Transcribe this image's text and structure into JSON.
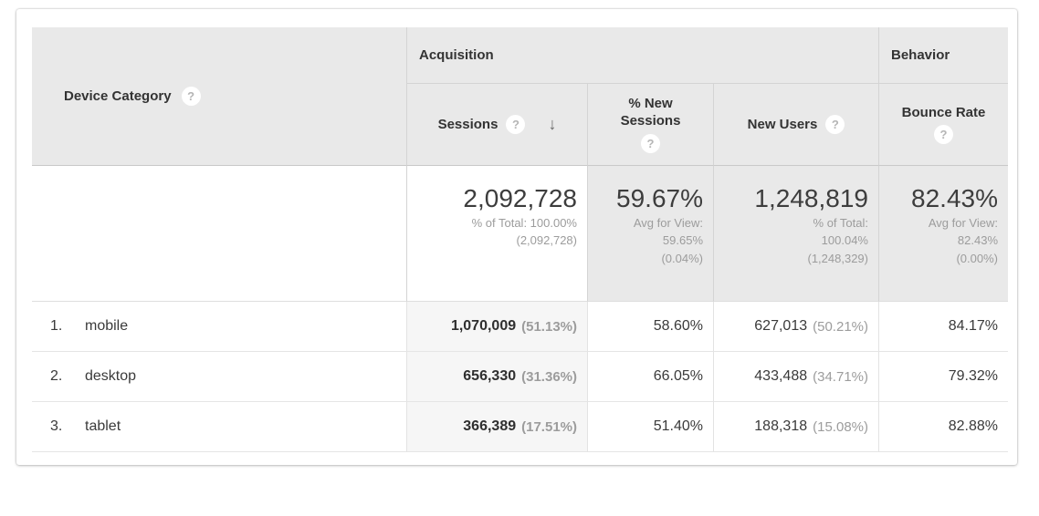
{
  "icons": {
    "help": "?",
    "sort_descending": "↓"
  },
  "colors": {
    "header_bg": "#e9e9e9",
    "sorted_col_bg": "#f6f6f6",
    "header_border": "#c9c9c9",
    "row_border": "#e5e5e5",
    "text_primary": "#3a3a3a",
    "text_secondary": "#9c9c9c"
  },
  "table": {
    "dimension_header": {
      "label": "Device Category"
    },
    "groups": {
      "acquisition": "Acquisition",
      "behavior": "Behavior"
    },
    "columns": {
      "sessions": {
        "label": "Sessions",
        "sorted": "descending"
      },
      "pct_new_sessions": {
        "label": "% New Sessions"
      },
      "new_users": {
        "label": "New Users"
      },
      "bounce_rate": {
        "label": "Bounce Rate"
      }
    },
    "totals": {
      "sessions": {
        "value": "2,092,728",
        "line1": "% of Total: 100.00%",
        "line2": "(2,092,728)"
      },
      "pct_new_sessions": {
        "value": "59.67%",
        "line1": "Avg for View:",
        "line2": "59.65%",
        "line3": "(0.04%)"
      },
      "new_users": {
        "value": "1,248,819",
        "line1": "% of Total:",
        "line2": "100.04%",
        "line3": "(1,248,329)"
      },
      "bounce_rate": {
        "value": "82.43%",
        "line1": "Avg for View:",
        "line2": "82.43%",
        "line3": "(0.00%)"
      }
    },
    "rows": [
      {
        "index": "1.",
        "label": "mobile",
        "sessions": "1,070,009",
        "sessions_pct": "(51.13%)",
        "pct_new_sessions": "58.60%",
        "new_users": "627,013",
        "new_users_pct": "(50.21%)",
        "bounce_rate": "84.17%"
      },
      {
        "index": "2.",
        "label": "desktop",
        "sessions": "656,330",
        "sessions_pct": "(31.36%)",
        "pct_new_sessions": "66.05%",
        "new_users": "433,488",
        "new_users_pct": "(34.71%)",
        "bounce_rate": "79.32%"
      },
      {
        "index": "3.",
        "label": "tablet",
        "sessions": "366,389",
        "sessions_pct": "(17.51%)",
        "pct_new_sessions": "51.40%",
        "new_users": "188,318",
        "new_users_pct": "(15.08%)",
        "bounce_rate": "82.88%"
      }
    ]
  }
}
